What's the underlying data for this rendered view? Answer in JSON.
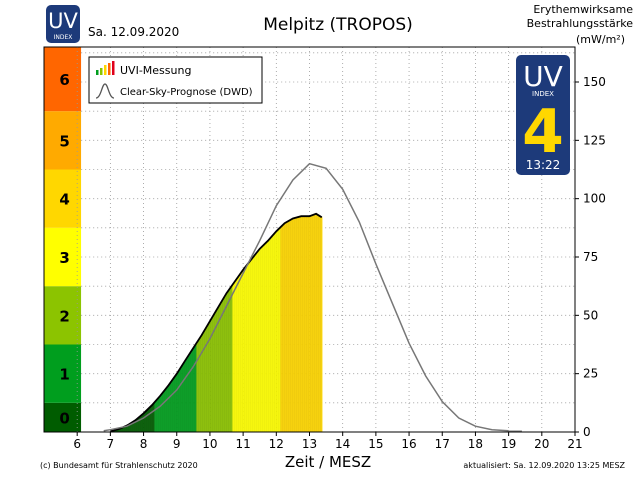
{
  "header": {
    "date": "Sa. 12.09.2020",
    "station": "Melpitz (TROPOS)",
    "unit_lines": [
      "Erythemwirksame",
      "Bestrahlungsstärke",
      "(mW/m²)"
    ],
    "logo_uv": "UV",
    "logo_index": "INDEX"
  },
  "legend": {
    "measurement_label": "UVI-Messung",
    "forecast_label": "Clear-Sky-Prognose (DWD)"
  },
  "badge": {
    "uv": "UV",
    "index_word": "INDEX",
    "value": "4",
    "time": "13:22"
  },
  "footer": {
    "copyright": "(c) Bundesamt für Strahlenschutz 2020",
    "updated": "aktualisiert: Sa. 12.09.2020  13:25  MESZ"
  },
  "chart_data": {
    "type": "area",
    "xlabel": "Zeit / MESZ",
    "ylabel": "Erythemwirksame Bestrahlungsstärke (mW/m²)",
    "xlim": [
      5,
      21
    ],
    "ylim": [
      0,
      165
    ],
    "x_ticks": [
      6,
      7,
      8,
      9,
      10,
      11,
      12,
      13,
      14,
      15,
      16,
      17,
      18,
      19,
      20,
      21
    ],
    "y_ticks": [
      0,
      25,
      50,
      75,
      100,
      125,
      150
    ],
    "grid": "dotted",
    "legend_position": "top-left",
    "uv_index_scale": [
      {
        "label": "0",
        "from": 0,
        "to": 12.5,
        "color": "#005c00"
      },
      {
        "label": "1",
        "from": 12.5,
        "to": 37.5,
        "color": "#009e1e"
      },
      {
        "label": "2",
        "from": 37.5,
        "to": 62.5,
        "color": "#8cc400"
      },
      {
        "label": "3",
        "from": 62.5,
        "to": 87.5,
        "color": "#ffff00"
      },
      {
        "label": "4",
        "from": 87.5,
        "to": 112.5,
        "color": "#ffd700"
      },
      {
        "label": "5",
        "from": 112.5,
        "to": 137.5,
        "color": "#ffaa00"
      },
      {
        "label": "6",
        "from": 137.5,
        "to": 165,
        "color": "#ff6600"
      }
    ],
    "series": [
      {
        "name": "UVI-Messung",
        "style": "measured-area",
        "x": [
          7.0,
          7.25,
          7.5,
          7.75,
          8.0,
          8.25,
          8.5,
          8.75,
          9.0,
          9.25,
          9.5,
          9.75,
          10.0,
          10.25,
          10.5,
          10.75,
          11.0,
          11.25,
          11.5,
          11.75,
          12.0,
          12.25,
          12.5,
          12.75,
          13.0,
          13.2,
          13.37
        ],
        "values": [
          0.3,
          1.2,
          2.8,
          5,
          8,
          11.5,
          15.5,
          20,
          25,
          30.5,
          36,
          41.5,
          47.5,
          53.5,
          59.5,
          64.5,
          69.5,
          74,
          78.5,
          82,
          86,
          89.5,
          91.5,
          92.5,
          92.5,
          93.5,
          92
        ]
      },
      {
        "name": "Clear-Sky-Prognose (DWD)",
        "style": "line",
        "x": [
          6.8,
          7.0,
          7.5,
          8.0,
          8.5,
          9.0,
          9.5,
          10.0,
          10.5,
          11.0,
          11.5,
          12.0,
          12.5,
          13.0,
          13.5,
          14.0,
          14.5,
          15.0,
          15.5,
          16.0,
          16.5,
          17.0,
          17.5,
          18.0,
          18.5,
          19.0,
          19.4
        ],
        "values": [
          0.5,
          1,
          2.5,
          6,
          11,
          18,
          28,
          40,
          54,
          68,
          82,
          97,
          108,
          115,
          113,
          104,
          90,
          72,
          55,
          38,
          24,
          13,
          6,
          2.5,
          1,
          0.5,
          0.3
        ]
      }
    ]
  }
}
